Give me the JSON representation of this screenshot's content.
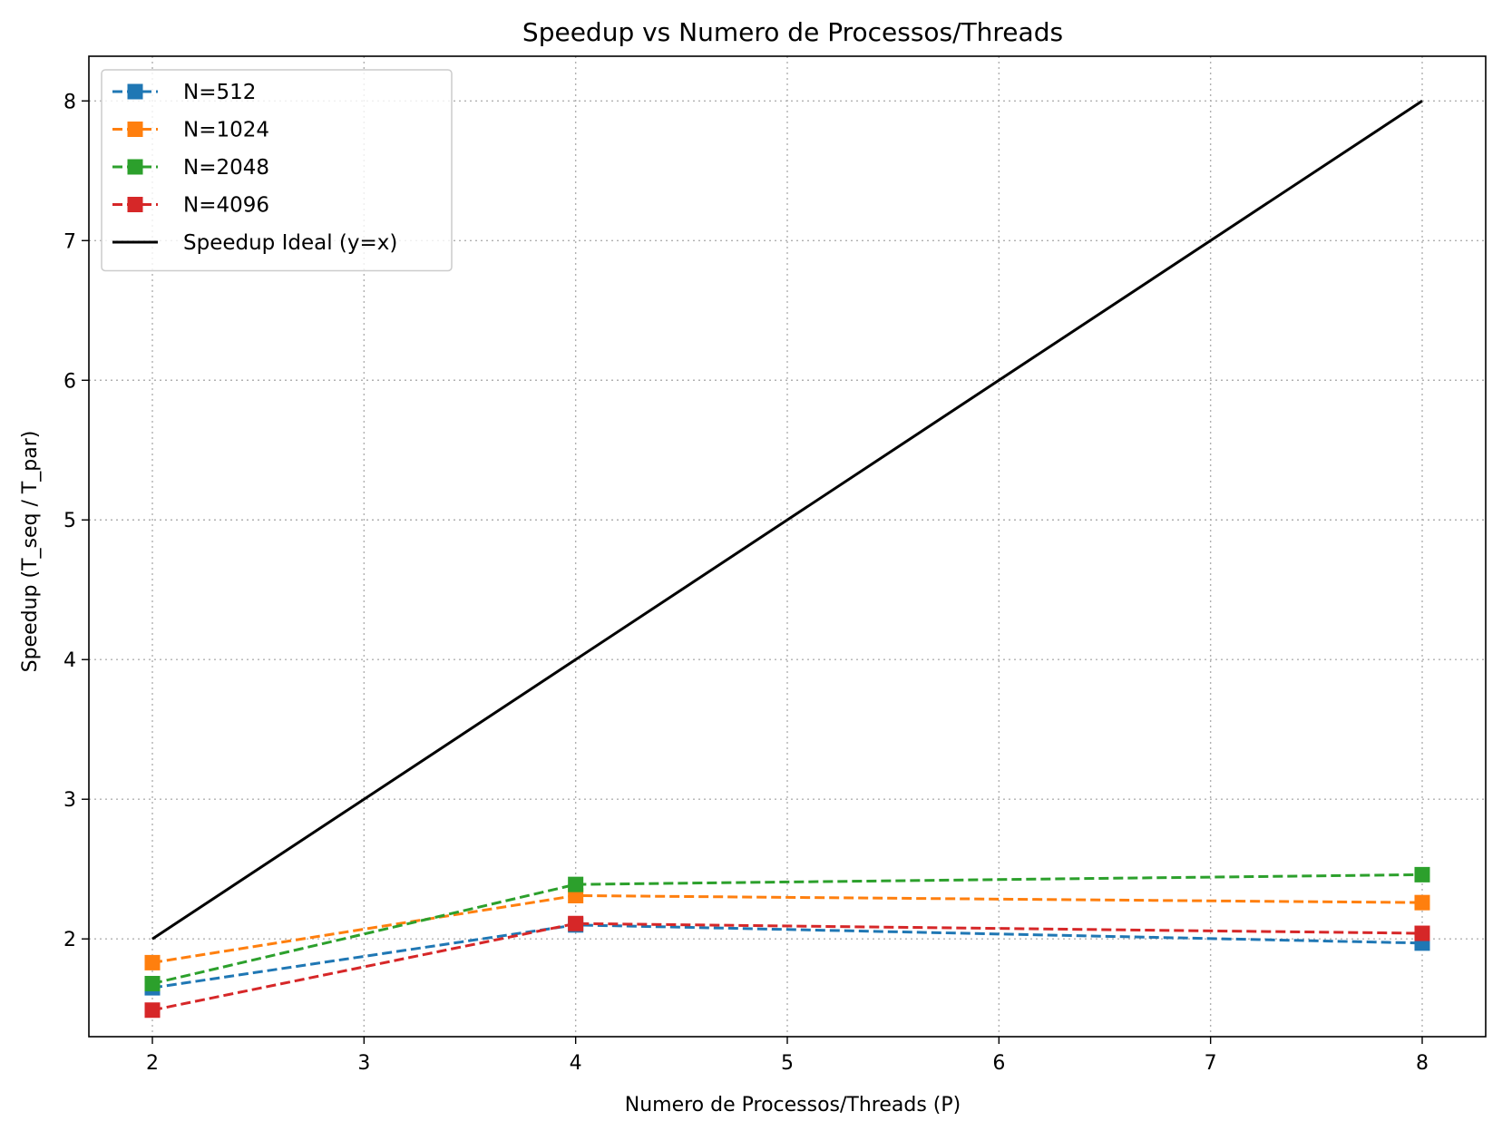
{
  "chart_data": {
    "type": "line",
    "title": "Speedup vs Numero de Processos/Threads",
    "xlabel": "Numero de Processos/Threads (P)",
    "ylabel": "Speedup (T_seq / T_par)",
    "xlim": [
      1.7,
      8.3
    ],
    "ylim": [
      1.3,
      8.32
    ],
    "xticks": [
      2,
      3,
      4,
      5,
      6,
      7,
      8
    ],
    "yticks": [
      2,
      3,
      4,
      5,
      6,
      7,
      8
    ],
    "grid": true,
    "legend_position": "upper-left",
    "series": [
      {
        "name": "N=512",
        "color": "#1f77b4",
        "style": "dashed",
        "marker": "square",
        "x": [
          2,
          4,
          8
        ],
        "values": [
          1.65,
          2.1,
          1.97
        ]
      },
      {
        "name": "N=1024",
        "color": "#ff7f0e",
        "style": "dashed",
        "marker": "square",
        "x": [
          2,
          4,
          8
        ],
        "values": [
          1.83,
          2.31,
          2.26
        ]
      },
      {
        "name": "N=2048",
        "color": "#2ca02c",
        "style": "dashed",
        "marker": "square",
        "x": [
          2,
          4,
          8
        ],
        "values": [
          1.68,
          2.39,
          2.46
        ]
      },
      {
        "name": "N=4096",
        "color": "#d62728",
        "style": "dashed",
        "marker": "square",
        "x": [
          2,
          4,
          8
        ],
        "values": [
          1.49,
          2.11,
          2.04
        ]
      },
      {
        "name": "Speedup Ideal (y=x)",
        "color": "#000000",
        "style": "solid",
        "marker": "none",
        "x": [
          2,
          8
        ],
        "values": [
          2,
          8
        ]
      }
    ]
  }
}
